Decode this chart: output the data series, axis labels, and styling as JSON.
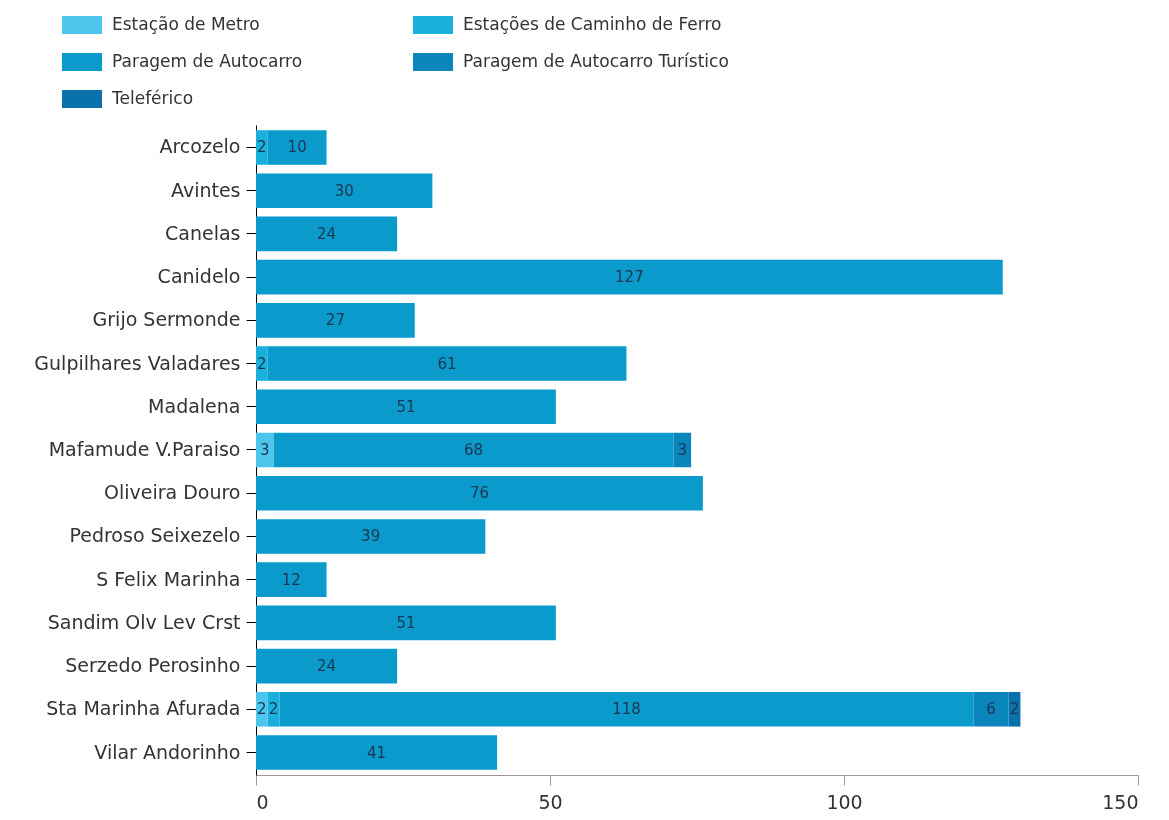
{
  "chart_data": {
    "type": "bar",
    "orientation": "horizontal",
    "stacked": true,
    "data_labels": true,
    "legend": "top left",
    "categories": [
      "Arcozelo",
      "Avintes",
      "Canelas",
      "Canidelo",
      "Grijo Sermonde",
      "Gulpilhares Valadares",
      "Madalena",
      "Mafamude V.Paraiso",
      "Oliveira Douro",
      "Pedroso Seixezelo",
      "S Felix Marinha",
      "Sandim Olv Lev Crst",
      "Serzedo Perosinho",
      "Sta Marinha Afurada",
      "Vilar Andorinho"
    ],
    "series": [
      {
        "name": "Estação de Metro",
        "color": "#4dc6ee",
        "values": [
          null,
          null,
          null,
          null,
          null,
          null,
          null,
          3,
          null,
          null,
          null,
          null,
          null,
          2,
          null
        ]
      },
      {
        "name": "Estações de Caminho de Ferro",
        "color": "#1ab0dc",
        "values": [
          2,
          null,
          null,
          null,
          null,
          2,
          null,
          null,
          null,
          null,
          null,
          null,
          null,
          2,
          null
        ]
      },
      {
        "name": "Paragem de Autocarro",
        "color": "#0a9acb",
        "values": [
          10,
          30,
          24,
          127,
          27,
          61,
          51,
          68,
          76,
          39,
          12,
          51,
          24,
          118,
          41
        ]
      },
      {
        "name": "Paragem de Autocarro Turístico",
        "color": "#0a86bd",
        "values": [
          null,
          null,
          null,
          null,
          null,
          null,
          null,
          3,
          null,
          null,
          null,
          null,
          null,
          6,
          null
        ]
      },
      {
        "name": "Teleférico",
        "color": "#0a72aa",
        "values": [
          null,
          null,
          null,
          null,
          null,
          null,
          null,
          null,
          null,
          null,
          null,
          null,
          null,
          2,
          null
        ]
      }
    ],
    "xlim": [
      0,
      150
    ],
    "xticks": [
      0,
      50,
      100,
      150
    ]
  }
}
